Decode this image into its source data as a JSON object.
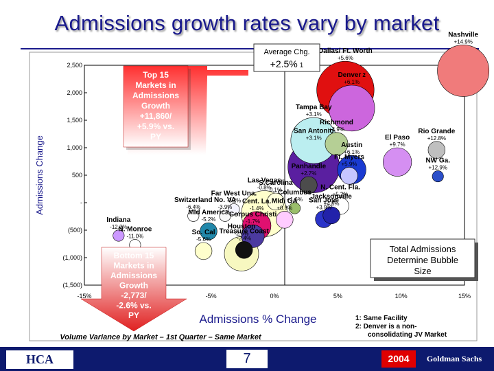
{
  "title": "Admissions growth rates vary by market",
  "subtitle": "Volume Variance by Market – 1st Quarter – Same Market",
  "average_box": {
    "label": "Average Chg.",
    "value": "+2.5%",
    "footnote_ref": "1"
  },
  "top_callout": [
    "Top 15",
    "Markets in",
    "Admissions",
    "Growth",
    "+11,860/",
    "+5.9% vs.",
    "PY"
  ],
  "bottom_callout": [
    "Bottom 15",
    "Markets in",
    "Admissions",
    "Growth",
    "-2,773/",
    "-2.6% vs.",
    "PY"
  ],
  "legend_box": [
    "Total Admissions",
    "Determine Bubble",
    "Size"
  ],
  "footnotes": [
    "1: Same Facility",
    "2: Denver is a non-",
    "consolidating JV Market"
  ],
  "footer": {
    "left_logo": "HCA",
    "page_number": "7",
    "year": "2004",
    "right_logo": "Goldman Sachs"
  },
  "colors": {
    "title": "#1a1a8c",
    "arrow_up": "#cc0000",
    "arrow_down": "#cc0000",
    "footer_bar": "#0d1a6e",
    "plot_bg": "#ffffff"
  },
  "chart_data": {
    "type": "scatter",
    "xlabel": "Admissions % Change",
    "ylabel": "Admissions Change",
    "xlim": [
      -15,
      15
    ],
    "ylim": [
      -1500,
      2500
    ],
    "x_ticks": [
      "-15%",
      "-10%",
      "-5%",
      "0%",
      "5%",
      "10%",
      "15%"
    ],
    "y_ticks": [
      "2,500",
      "2,000",
      "1,500",
      "1,000",
      "500",
      "-",
      "(500)",
      "(1,000)",
      "(1,500)"
    ],
    "grid": false,
    "points": [
      {
        "name": "Nashville",
        "label": "+14.9%",
        "x": 14.9,
        "y": 2400,
        "size": 8,
        "color": "#f07b7b"
      },
      {
        "name": "Dallas/ Ft. Worth",
        "label": "+5.6%",
        "x": 5.6,
        "y": 2050,
        "size": 9,
        "color": "#e01010"
      },
      {
        "name": "Denver",
        "footnote_ref": "2",
        "label": "+6.1%",
        "x": 6.1,
        "y": 1720,
        "size": 7,
        "color": "#cc66dd"
      },
      {
        "name": "Tampa Bay",
        "label": "+3.1%",
        "x": 3.1,
        "y": 1130,
        "size": 7,
        "color": "#bbeef0"
      },
      {
        "name": "Richmond",
        "label": "+4.9%",
        "x": 4.9,
        "y": 1070,
        "size": 3,
        "color": "#b5cf95"
      },
      {
        "name": "Rio Grande",
        "label": "+12.8%",
        "x": 12.8,
        "y": 960,
        "size": 2,
        "color": "#bfbfbf"
      },
      {
        "name": "San Antonio",
        "label": "+3.1%",
        "x": 3.1,
        "y": 650,
        "size": 8,
        "color": "#5a1fa0"
      },
      {
        "name": "El Paso",
        "label": "+9.7%",
        "x": 9.7,
        "y": 740,
        "size": 4,
        "color": "#d58ff2"
      },
      {
        "name": "Austin",
        "label": "+6.1%",
        "x": 6.1,
        "y": 600,
        "size": 4,
        "color": "#1a3ad1"
      },
      {
        "name": "Ft. Myers",
        "label": "+5.9%",
        "x": 5.9,
        "y": 490,
        "size": 2,
        "color": "#c6c6ff"
      },
      {
        "name": "NW Ga.",
        "label": "+12.9%",
        "x": 12.9,
        "y": 480,
        "size": 1,
        "color": "#2b4fc9"
      },
      {
        "name": "Panhandle",
        "label": "+2.7%",
        "x": 2.7,
        "y": 320,
        "size": 2,
        "color": "#4c4c4c"
      },
      {
        "name": "S.Carolina",
        "label": "0.1%",
        "x": 0.1,
        "y": 20,
        "size": 2,
        "color": "#ffffdd"
      },
      {
        "name": "Far West Una.",
        "label": "-3.2%",
        "x": -3.2,
        "y": -120,
        "size": 1,
        "color": "#f4f4ff"
      },
      {
        "name": "Las Vegas",
        "label": "-0.8%",
        "x": -0.8,
        "y": -200,
        "size": 7,
        "color": "#ffffcc"
      },
      {
        "name": "No. VA",
        "label": "-3.9%",
        "x": -3.9,
        "y": -240,
        "size": 1,
        "color": "#f9f9f9"
      },
      {
        "name": "Columbus",
        "label": "+1.6%",
        "x": 1.6,
        "y": -100,
        "size": 1,
        "color": "#9abe6b"
      },
      {
        "name": "Switzerland",
        "label": "-6.4%",
        "x": -6.4,
        "y": -240,
        "size": 1,
        "color": "#ffffff"
      },
      {
        "name": "Mid. GA",
        "label": "+0.8%",
        "x": 0.8,
        "y": -310,
        "size": 2,
        "color": "#ffccff"
      },
      {
        "name": "N. Cent. Fla.",
        "label": "+5.2%",
        "x": 5.2,
        "y": -60,
        "size": 2,
        "color": "#ffffff"
      },
      {
        "name": "San Jose",
        "label": "+3.9%",
        "x": 3.9,
        "y": -300,
        "size": 2,
        "color": "#2a33c8"
      },
      {
        "name": "Jacksonville",
        "label": "+4.5%",
        "x": 4.5,
        "y": -230,
        "size": 2,
        "color": "#2222aa"
      },
      {
        "name": "Cent. La.",
        "label": "-1.4%",
        "x": -1.4,
        "y": -420,
        "size": 4,
        "color": "#e01070"
      },
      {
        "name": "Indiana",
        "label": "-12.3%",
        "x": -12.3,
        "y": -600,
        "size": 1,
        "color": "#cc99ff"
      },
      {
        "name": "Mid America",
        "label": "-5.2%",
        "x": -5.2,
        "y": -520,
        "size": 2,
        "color": "#2288aa"
      },
      {
        "name": "N. Monroe",
        "label": "-11.0%",
        "x": -11.0,
        "y": -770,
        "size": 1,
        "color": "#ffffff"
      },
      {
        "name": "Corpus Christi",
        "label": "-1.7%",
        "x": -1.7,
        "y": -610,
        "size": 3,
        "color": "#4b3aa0"
      },
      {
        "name": "So. Cal",
        "label": "-5.6%",
        "x": -5.6,
        "y": -880,
        "size": 2,
        "color": "#ffffcc"
      },
      {
        "name": "Treasure Coast",
        "label": "-2.4%",
        "x": -2.4,
        "y": -860,
        "size": 2,
        "color": "#111111"
      },
      {
        "name": "Houston",
        "label": "-2.6%",
        "x": -2.6,
        "y": -930,
        "size": 5,
        "color": "#f7f8c0"
      }
    ]
  }
}
